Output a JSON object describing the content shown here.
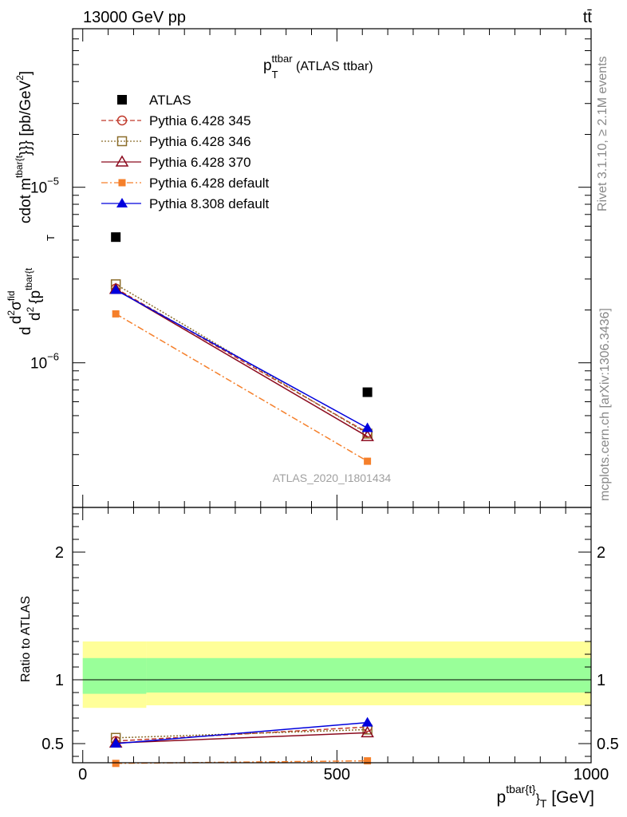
{
  "header": {
    "left": "13000 GeV pp",
    "right": "tt̄"
  },
  "side_texts": {
    "rivet": "Rivet 3.1.10, ≥ 2.1M events",
    "mcplots": "mcplots.cern.ch [arXiv:1306.3436]"
  },
  "chart_data": [
    {
      "type": "scatter",
      "panel": "main",
      "title_main": "p",
      "title_sub": "T",
      "title_sup": "ttbar",
      "title_rest": " (ATLAS ttbar)",
      "ylabel": "d d²σ^fid / d² {p^{tbar{t}}_T} cdot m^{tbar{t}}}} [pb/GeV²]",
      "ylabel_parts": {
        "d1": "d",
        "d2": "d",
        "sup2": "2",
        "sigma": "σ",
        "fid": "fid",
        "d3": "d",
        "sup2b": "2",
        "brace": "{p",
        "tbar": "tbar{t",
        "T": "T",
        "cdot": "cdot m",
        "tbar2": "tbar{t",
        "close": "}}} [pb/GeV",
        "sup2c": "2",
        "end": "]"
      },
      "yscale": "log",
      "ylim": [
        1.5e-07,
        8e-05
      ],
      "xlim": [
        -20,
        1000
      ],
      "yticks": [
        {
          "value": 1e-05,
          "mant": "10",
          "exp": "−5"
        },
        {
          "value": 1e-06,
          "mant": "10",
          "exp": "−6"
        }
      ],
      "watermark": "ATLAS_2020_I1801434",
      "legend_position": "top-left",
      "series": [
        {
          "name": "ATLAS",
          "color": "#000000",
          "marker": "filled-square",
          "line": "none",
          "x": [
            65,
            560
          ],
          "y": [
            5.2e-06,
            6.8e-07
          ]
        },
        {
          "name": "Pythia 6.428 345",
          "color": "#c0392b",
          "marker": "open-circle",
          "line": "dashed",
          "x": [
            65,
            560
          ],
          "y": [
            2.65e-06,
            4e-07
          ]
        },
        {
          "name": "Pythia 6.428 346",
          "color": "#8b6d2a",
          "marker": "open-square",
          "line": "dotted",
          "x": [
            65,
            560
          ],
          "y": [
            2.8e-06,
            3.95e-07
          ]
        },
        {
          "name": "Pythia 6.428 370",
          "color": "#8b0a1e",
          "marker": "open-triangle",
          "line": "solid",
          "x": [
            65,
            560
          ],
          "y": [
            2.62e-06,
            3.8e-07
          ]
        },
        {
          "name": "Pythia 6.428 default",
          "color": "#f57f2a",
          "marker": "filled-square-small",
          "line": "dashdot",
          "x": [
            65,
            560
          ],
          "y": [
            1.9e-06,
            2.75e-07
          ]
        },
        {
          "name": "Pythia 8.308 default",
          "color": "#0000dd",
          "marker": "filled-triangle",
          "line": "solid",
          "x": [
            65,
            560
          ],
          "y": [
            2.6e-06,
            4.25e-07
          ]
        }
      ]
    },
    {
      "type": "scatter",
      "panel": "ratio",
      "ylabel": "Ratio to ATLAS",
      "xlabel_main": "p",
      "xlabel_sup": "tbar{t}",
      "xlabel_sub": "}",
      "xlabel_sub2": "T",
      "xlabel_units": " [GeV]",
      "ylim": [
        0.35,
        2.35
      ],
      "xlim": [
        -20,
        1000
      ],
      "yticks": [
        0.5,
        1,
        2
      ],
      "ytick_labels": [
        "0.5",
        "1",
        "2"
      ],
      "xticks": [
        0,
        500,
        1000
      ],
      "xtick_labels": [
        "0",
        "500",
        "1000"
      ],
      "bands": {
        "yellow": {
          "color": "#ffff99",
          "segments": [
            {
              "x0": 0,
              "x1": 125,
              "lo": 0.78,
              "hi": 1.3
            },
            {
              "x0": 125,
              "x1": 1000,
              "lo": 0.8,
              "hi": 1.3
            }
          ]
        },
        "green": {
          "color": "#99ff99",
          "segments": [
            {
              "x0": 0,
              "x1": 125,
              "lo": 0.89,
              "hi": 1.17
            },
            {
              "x0": 125,
              "x1": 1000,
              "lo": 0.9,
              "hi": 1.17
            }
          ]
        }
      },
      "series": [
        {
          "name": "Pythia 6.428 345",
          "x": [
            65,
            560
          ],
          "y": [
            0.52,
            0.63
          ]
        },
        {
          "name": "Pythia 6.428 346",
          "x": [
            65,
            560
          ],
          "y": [
            0.545,
            0.61
          ]
        },
        {
          "name": "Pythia 6.428 370",
          "x": [
            65,
            560
          ],
          "y": [
            0.505,
            0.585
          ]
        },
        {
          "name": "Pythia 6.428 default",
          "x": [
            65,
            560
          ],
          "y": [
            0.345,
            0.365
          ]
        },
        {
          "name": "Pythia 8.308 default",
          "x": [
            65,
            560
          ],
          "y": [
            0.5,
            0.665
          ],
          "yerr": [
            0,
            0.025
          ]
        }
      ]
    }
  ]
}
